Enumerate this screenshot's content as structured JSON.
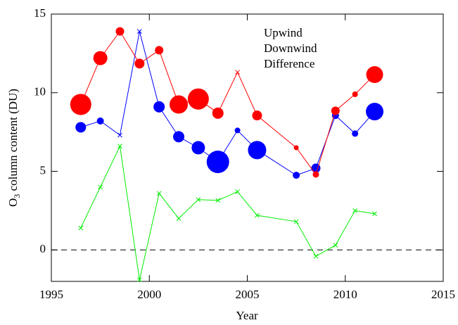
{
  "chart_data": {
    "type": "line",
    "xlabel": "Year",
    "ylabel": {
      "main": "O",
      "sub": "3",
      "rest": " column content (DU)"
    },
    "xlim": [
      1995,
      2015
    ],
    "xticks": [
      1995,
      2000,
      2005,
      2010,
      2015
    ],
    "ylim": [
      -2,
      15
    ],
    "yticks": [
      0,
      5,
      10,
      15
    ],
    "hline": 0,
    "x": [
      1996.5,
      1997.5,
      1998.5,
      1999.5,
      2000.5,
      2001.5,
      2002.5,
      2003.5,
      2004.5,
      2005.5,
      2007.5,
      2008.5,
      2009.5,
      2010.5,
      2011.5
    ],
    "series": [
      {
        "name": "Upwind",
        "color": "#0000ff",
        "values": [
          7.8,
          8.2,
          7.3,
          13.9,
          9.1,
          7.2,
          6.5,
          5.6,
          7.6,
          6.35,
          4.75,
          5.2,
          8.55,
          7.4,
          8.8
        ],
        "sizes": [
          7.5,
          5,
          null,
          null,
          8,
          8,
          9.5,
          16,
          4,
          13,
          5,
          6.5,
          5,
          4.5,
          12.5
        ]
      },
      {
        "name": "Downwind",
        "color": "#ff0000",
        "values": [
          9.25,
          12.2,
          13.9,
          11.85,
          12.7,
          9.25,
          9.6,
          8.7,
          11.3,
          8.55,
          6.5,
          4.8,
          8.85,
          9.9,
          11.15
        ],
        "sizes": [
          15,
          10,
          6,
          7,
          6,
          13,
          15,
          8,
          null,
          7,
          3.5,
          4.5,
          6,
          4,
          12
        ]
      },
      {
        "name": "Difference",
        "color": "#00ee00",
        "values": [
          1.4,
          4.0,
          6.6,
          -1.9,
          3.6,
          2.0,
          3.2,
          3.15,
          3.7,
          2.2,
          1.8,
          -0.4,
          0.3,
          2.5,
          2.3
        ],
        "sizes": [
          null,
          null,
          null,
          null,
          null,
          null,
          null,
          null,
          null,
          null,
          null,
          null,
          null,
          null,
          null
        ]
      }
    ]
  }
}
